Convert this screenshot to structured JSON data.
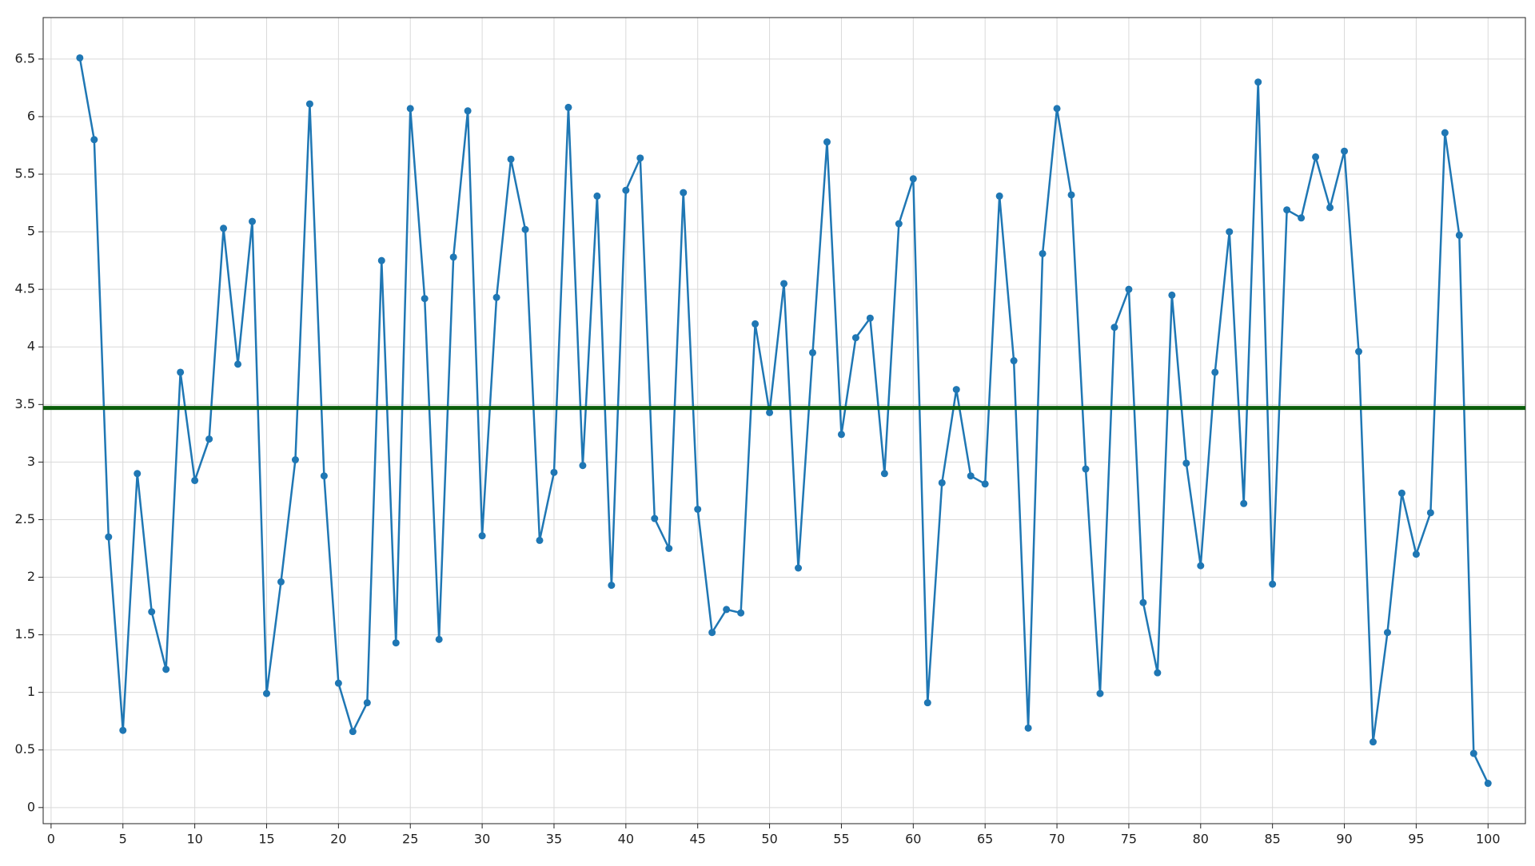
{
  "chart_data": {
    "type": "line",
    "x": [
      2,
      3,
      4,
      5,
      6,
      7,
      8,
      9,
      10,
      11,
      12,
      13,
      14,
      15,
      16,
      17,
      18,
      19,
      20,
      21,
      22,
      23,
      24,
      25,
      26,
      27,
      28,
      29,
      30,
      31,
      32,
      33,
      34,
      35,
      36,
      37,
      38,
      39,
      40,
      41,
      42,
      43,
      44,
      45,
      46,
      47,
      48,
      49,
      50,
      51,
      52,
      53,
      54,
      55,
      56,
      57,
      58,
      59,
      60,
      61,
      62,
      63,
      64,
      65,
      66,
      67,
      68,
      69,
      70,
      71,
      72,
      73,
      74,
      75,
      76,
      77,
      78,
      79,
      80,
      81,
      82,
      83,
      84,
      85,
      86,
      87,
      88,
      89,
      90,
      91,
      92,
      93,
      94,
      95,
      96,
      97,
      98,
      99,
      100
    ],
    "series": [
      {
        "color": "#1f77b4",
        "values": [
          6.51,
          5.8,
          2.35,
          0.67,
          2.9,
          1.7,
          1.2,
          3.78,
          2.84,
          3.2,
          5.03,
          3.85,
          5.09,
          0.99,
          1.96,
          3.02,
          6.11,
          2.88,
          1.08,
          0.66,
          0.91,
          4.75,
          1.43,
          6.07,
          4.42,
          1.46,
          4.78,
          6.05,
          2.36,
          4.43,
          5.63,
          5.02,
          2.32,
          2.91,
          6.08,
          2.97,
          5.31,
          1.93,
          5.36,
          5.64,
          2.51,
          2.25,
          5.34,
          2.59,
          1.52,
          1.72,
          1.69,
          4.2,
          3.43,
          4.55,
          2.08,
          3.95,
          5.78,
          3.24,
          4.08,
          4.25,
          2.9,
          5.07,
          5.46,
          0.91,
          2.82,
          3.63,
          2.88,
          2.81,
          5.31,
          3.88,
          0.69,
          4.81,
          6.07,
          5.32,
          2.94,
          0.99,
          4.17,
          4.5,
          1.78,
          1.17,
          4.45,
          2.99,
          2.1,
          3.78,
          5.0,
          2.64,
          6.3,
          1.94,
          5.19,
          5.12,
          5.65,
          5.21,
          5.7,
          3.96,
          0.57,
          1.52,
          2.73,
          2.2,
          2.56,
          5.86,
          4.97,
          0.47,
          0.21
        ]
      }
    ],
    "reference_line": {
      "value": 3.47,
      "color": "#0b5e0b"
    },
    "xlim": [
      -0.55,
      102.6
    ],
    "xticks": [
      0,
      5,
      10,
      15,
      20,
      25,
      30,
      35,
      40,
      45,
      50,
      55,
      60,
      65,
      70,
      75,
      80,
      85,
      90,
      95,
      100
    ],
    "ylim": [
      -0.14,
      6.86
    ],
    "yticks": [
      0,
      0.5,
      1,
      1.5,
      2,
      2.5,
      3,
      3.5,
      4,
      4.5,
      5,
      5.5,
      6,
      6.5
    ],
    "grid": true
  }
}
